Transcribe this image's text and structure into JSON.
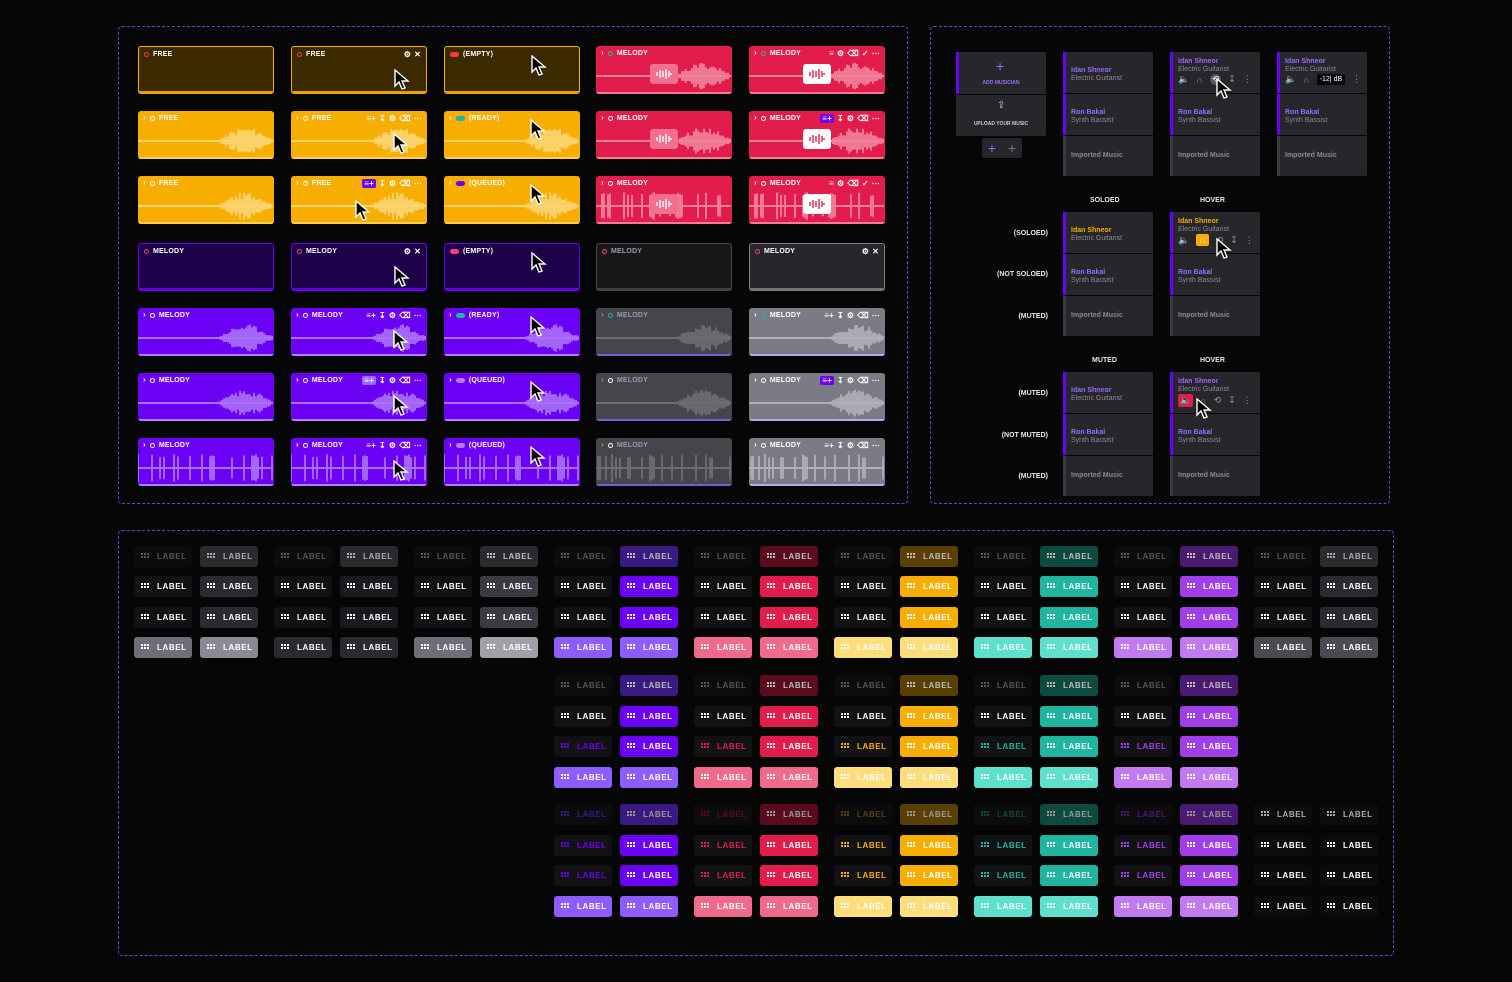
{
  "clips": {
    "free": "FREE",
    "melody": "MELODY",
    "empty": "(EMPTY)",
    "ready": "(READY)",
    "queued": "(QUEUED)"
  },
  "panel": {
    "add_musician": "ADD MUSICIAN",
    "upload_music": "UPLOAD YOUR MUSIC",
    "track1_name": "Idan Shneor",
    "track1_role": "Electric Guitarist",
    "track2_name": "Ron Bakal",
    "track2_role": "Synth Bassist",
    "track3_name": "Imported Music",
    "volume": "-12| dB",
    "soloed": "SOLOED",
    "hover": "HOVER",
    "muted_title": "MUTED",
    "state_soloed": "(SOLOED)",
    "state_not_soloed": "(NOT SOLOED)",
    "state_muted": "(MUTED)",
    "state_not_muted": "(NOT MUTED)"
  },
  "tag_label": "LABEL",
  "colors": {
    "yellow": "#f7ae00",
    "purple": "#6a00f4",
    "red": "#e21d4c",
    "grey": "#45454c",
    "teal": "#1fb5a0",
    "violet": "#9b30e0"
  }
}
